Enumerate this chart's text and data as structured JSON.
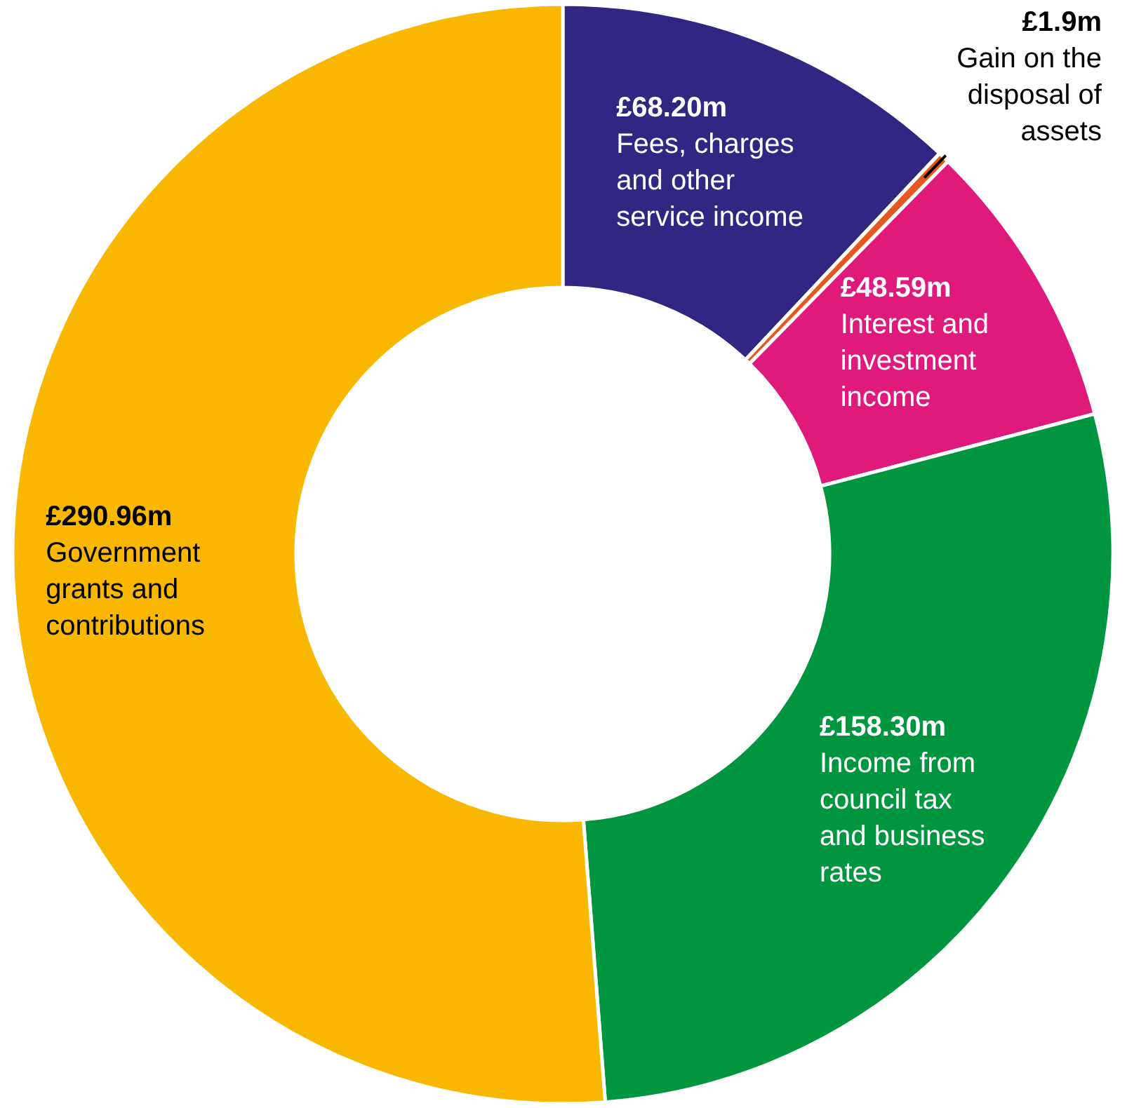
{
  "chart_data": {
    "type": "donut",
    "categories": [
      "Fees, charges and other service income",
      "Gain on the disposal of assets",
      "Interest and investment income",
      "Income from council tax and business rates",
      "Government grants and contributions"
    ],
    "values": [
      68.2,
      1.9,
      48.59,
      158.3,
      290.96
    ],
    "value_labels": [
      "£68.20m",
      "£1.9m",
      "£48.59m",
      "£158.30m",
      "£290.96m"
    ],
    "colors": [
      "#312783",
      "#e5571f",
      "#e0197d",
      "#009640",
      "#f9b700"
    ]
  }
}
